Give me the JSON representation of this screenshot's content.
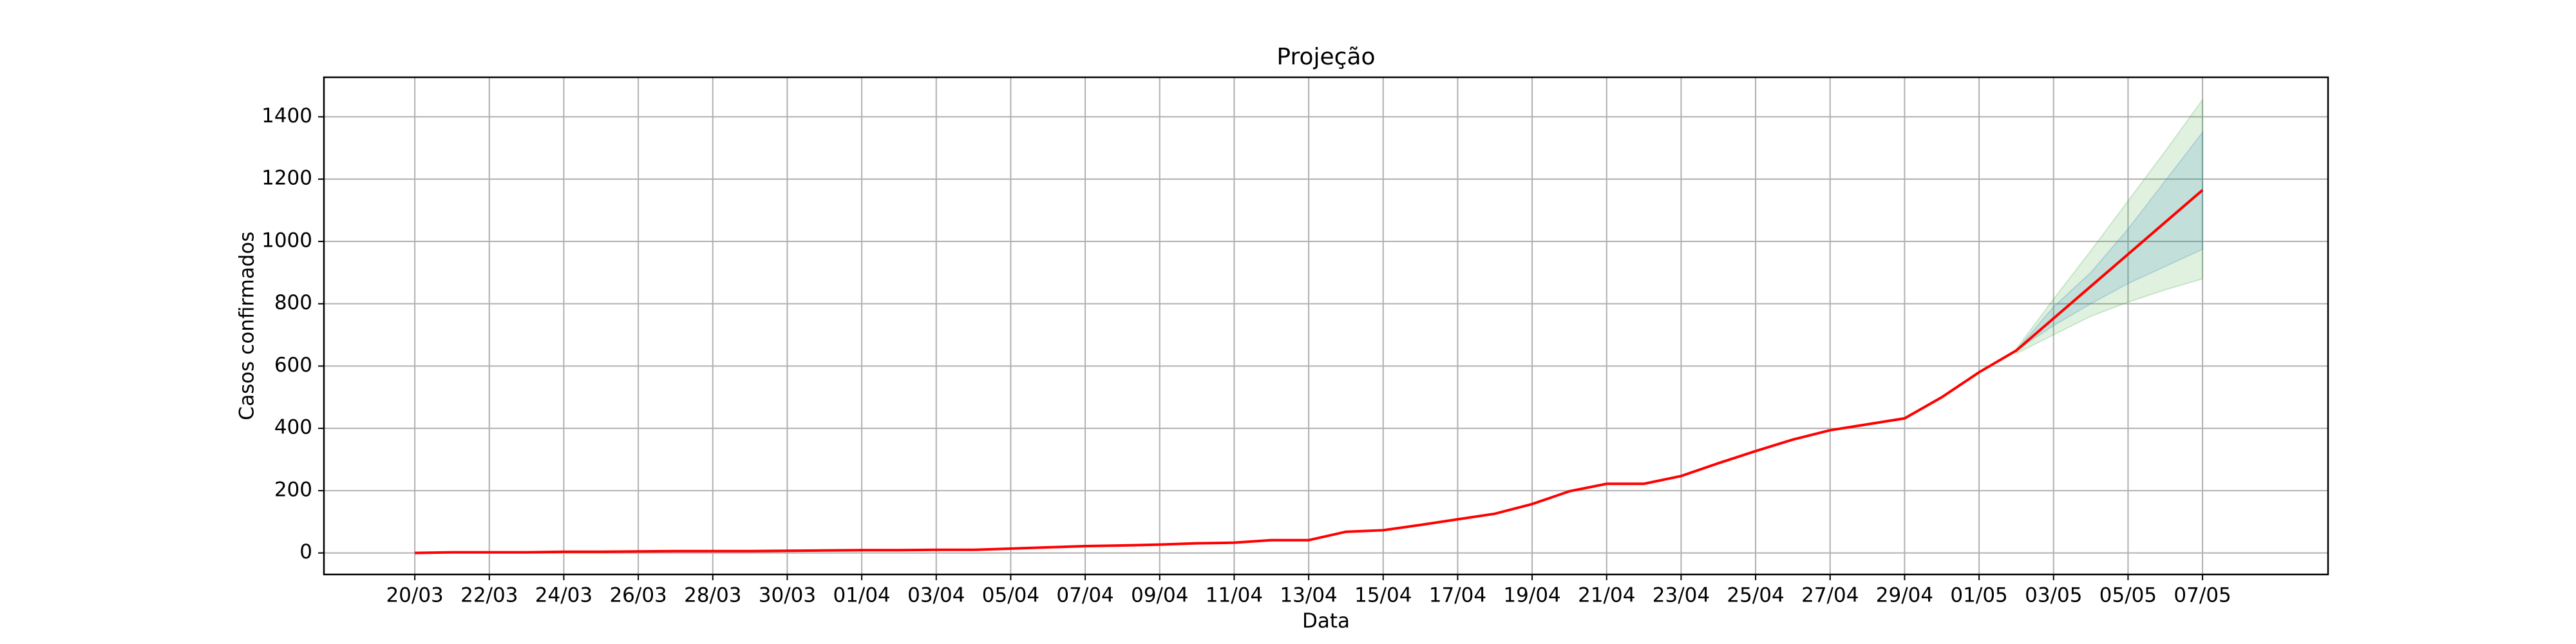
{
  "chart_data": {
    "type": "line",
    "title": "Projeção",
    "xlabel": "Data",
    "ylabel": "Casos confirmados",
    "categories": [
      "20/03",
      null,
      "22/03",
      null,
      "24/03",
      null,
      "26/03",
      null,
      "28/03",
      null,
      "30/03",
      null,
      "01/04",
      null,
      "03/04",
      null,
      "05/04",
      null,
      "07/04",
      null,
      "09/04",
      null,
      "11/04",
      null,
      "13/04",
      null,
      "15/04",
      null,
      "17/04",
      null,
      "19/04",
      null,
      "21/04",
      null,
      "23/04",
      null,
      "25/04",
      null,
      "27/04",
      null,
      "29/04",
      null,
      "01/05",
      null,
      "03/05",
      null,
      "05/05",
      null,
      "07/05"
    ],
    "xlim": [
      -2.44,
      51.37
    ],
    "series": [
      {
        "color": "#ff0000",
        "values": [
          0,
          2,
          2,
          2,
          4,
          4,
          5,
          6,
          6,
          6,
          7,
          8,
          9,
          9,
          10,
          10,
          14,
          18,
          22,
          24,
          27,
          31,
          33,
          41,
          41,
          68,
          73,
          90,
          108,
          126,
          157,
          198,
          222,
          222,
          247,
          288,
          327,
          364,
          394,
          413,
          432,
          500,
          580,
          650,
          753,
          856,
          959,
          1062,
          1165
        ]
      }
    ],
    "bands": [
      {
        "color": "#2ca02c",
        "lower": [
          null,
          null,
          null,
          null,
          null,
          null,
          null,
          null,
          null,
          null,
          null,
          null,
          null,
          null,
          null,
          null,
          null,
          null,
          null,
          null,
          null,
          null,
          null,
          null,
          null,
          null,
          null,
          null,
          null,
          null,
          null,
          null,
          null,
          null,
          null,
          null,
          null,
          null,
          null,
          null,
          null,
          null,
          null,
          640,
          700,
          760,
          805,
          845,
          880
        ],
        "upper": [
          null,
          null,
          null,
          null,
          null,
          null,
          null,
          null,
          null,
          null,
          null,
          null,
          null,
          null,
          null,
          null,
          null,
          null,
          null,
          null,
          null,
          null,
          null,
          null,
          null,
          null,
          null,
          null,
          null,
          null,
          null,
          null,
          null,
          null,
          null,
          null,
          null,
          null,
          null,
          null,
          null,
          null,
          null,
          655,
          815,
          970,
          1130,
          1290,
          1455
        ]
      },
      {
        "color": "#1f77b4",
        "lower": [
          null,
          null,
          null,
          null,
          null,
          null,
          null,
          null,
          null,
          null,
          null,
          null,
          null,
          null,
          null,
          null,
          null,
          null,
          null,
          null,
          null,
          null,
          null,
          null,
          null,
          null,
          null,
          null,
          null,
          null,
          null,
          null,
          null,
          null,
          null,
          null,
          null,
          null,
          null,
          null,
          null,
          null,
          null,
          650,
          730,
          800,
          865,
          920,
          975
        ],
        "upper": [
          null,
          null,
          null,
          null,
          null,
          null,
          null,
          null,
          null,
          null,
          null,
          null,
          null,
          null,
          null,
          null,
          null,
          null,
          null,
          null,
          null,
          null,
          null,
          null,
          null,
          null,
          null,
          null,
          null,
          null,
          null,
          null,
          null,
          null,
          null,
          null,
          null,
          null,
          null,
          null,
          null,
          null,
          null,
          650,
          790,
          900,
          1040,
          1195,
          1350
        ]
      }
    ],
    "ylim": [
      -69,
      1527
    ],
    "yticks": [
      0,
      200,
      400,
      600,
      800,
      1000,
      1200,
      1400
    ],
    "grid": true
  }
}
